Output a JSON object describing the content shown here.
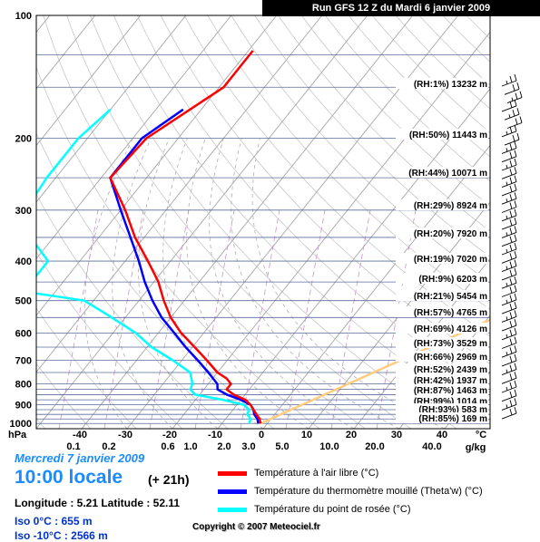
{
  "header": {
    "title": "Run GFS 12 Z du Mardi 6 janvier 2009"
  },
  "info": {
    "date": "Mercredi 7 janvier 2009",
    "time": "10:00 locale",
    "forecast": "(+ 21h)",
    "location": "Longitude : 5.21  Latitude : 52.11",
    "iso0": "Iso 0°C : 655 m",
    "iso10": "Iso -10°C : 2566 m"
  },
  "copyright": "Copyright © 2007 Meteociel.fr",
  "legend": [
    {
      "label": "Température à l'air libre (°C)",
      "color": "#ff0000"
    },
    {
      "label": "Température du thermomètre mouillé (Theta'w) (°C)",
      "color": "#0000ff"
    },
    {
      "label": "Température du point de rosée (°C)",
      "color": "#00ffff"
    }
  ],
  "chart_data": {
    "type": "line",
    "title": "Run GFS 12 Z du Mardi 6 janvier 2009",
    "y_axis": {
      "label": "hPa",
      "ticks": [
        100,
        200,
        300,
        400,
        500,
        600,
        700,
        800,
        900,
        1000
      ],
      "scale": "log",
      "range": [
        1030,
        100
      ]
    },
    "x_axis": {
      "label": "°C",
      "ticks": [
        -40,
        -30,
        -20,
        -10,
        0,
        10,
        20,
        30,
        40
      ],
      "skew": true
    },
    "mixing_ratio_axis": {
      "label": "g/kg",
      "ticks": [
        "0.1",
        "0.2",
        "0.6",
        "1.0",
        "2.0",
        "3.0",
        "5.0",
        "10.0",
        "20.0",
        "40.0"
      ]
    },
    "levels": [
      {
        "label": "(RH:1%) 13232 m"
      },
      {
        "label": "(RH:50%) 11443 m"
      },
      {
        "label": "(RH:44%) 10071 m"
      },
      {
        "label": "(RH:29%) 8924 m"
      },
      {
        "label": "(RH:20%) 7920 m"
      },
      {
        "label": "(RH:19%) 7020 m"
      },
      {
        "label": "(RH:9%) 6203 m"
      },
      {
        "label": "(RH:21%) 5454 m"
      },
      {
        "label": "(RH:57%) 4765 m"
      },
      {
        "label": "(RH:69%) 4126 m"
      },
      {
        "label": "(RH:73%) 3529 m"
      },
      {
        "label": "(RH:66%) 2969 m"
      },
      {
        "label": "(RH:52%) 2439 m"
      },
      {
        "label": "(RH:42%) 1937 m"
      },
      {
        "label": "(RH:87%) 1463 m"
      },
      {
        "label": "(RH:99%) 1014 m"
      },
      {
        "label": "(RH:93%) 583 m"
      },
      {
        "label": "(RH:85%) 169 m"
      }
    ],
    "series": [
      {
        "name": "Température à l'air libre (°C)",
        "color": "#ff0000",
        "points": [
          [
            1000,
            -1.5
          ],
          [
            975,
            -2.5
          ],
          [
            950,
            -4
          ],
          [
            925,
            -5.5
          ],
          [
            900,
            -7
          ],
          [
            875,
            -9
          ],
          [
            850,
            -12.5
          ],
          [
            825,
            -15
          ],
          [
            800,
            -15
          ],
          [
            775,
            -17
          ],
          [
            750,
            -20
          ],
          [
            700,
            -24.5
          ],
          [
            650,
            -29.5
          ],
          [
            600,
            -35
          ],
          [
            550,
            -40
          ],
          [
            500,
            -44.5
          ],
          [
            450,
            -49
          ],
          [
            400,
            -55
          ],
          [
            350,
            -62
          ],
          [
            300,
            -69
          ],
          [
            250,
            -78
          ],
          [
            200,
            -77
          ],
          [
            150,
            -69
          ],
          [
            122,
            -69
          ]
        ]
      },
      {
        "name": "Température du thermomètre mouillé (Theta'w) (°C)",
        "color": "#0000ff",
        "points": [
          [
            1000,
            -2
          ],
          [
            975,
            -3
          ],
          [
            950,
            -4.5
          ],
          [
            925,
            -5.5
          ],
          [
            900,
            -7
          ],
          [
            875,
            -10
          ],
          [
            850,
            -14
          ],
          [
            825,
            -17
          ],
          [
            800,
            -18
          ],
          [
            750,
            -22
          ],
          [
            700,
            -26.5
          ],
          [
            650,
            -31.5
          ],
          [
            600,
            -36.5
          ],
          [
            550,
            -42
          ],
          [
            500,
            -47
          ],
          [
            450,
            -52
          ],
          [
            400,
            -57
          ],
          [
            350,
            -63
          ],
          [
            300,
            -70
          ],
          [
            250,
            -78
          ],
          [
            200,
            -78
          ],
          [
            170,
            -74
          ]
        ]
      },
      {
        "name": "Température du point de rosée (°C)",
        "color": "#00ffff",
        "points": [
          [
            1000,
            -4
          ],
          [
            975,
            -4.5
          ],
          [
            950,
            -6
          ],
          [
            925,
            -6.5
          ],
          [
            900,
            -8.5
          ],
          [
            875,
            -14
          ],
          [
            850,
            -21
          ],
          [
            825,
            -23
          ],
          [
            800,
            -23.5
          ],
          [
            750,
            -26
          ],
          [
            700,
            -32
          ],
          [
            650,
            -39
          ],
          [
            600,
            -45
          ],
          [
            550,
            -53
          ],
          [
            500,
            -62
          ],
          [
            475,
            -77
          ],
          [
            440,
            -77
          ],
          [
            400,
            -77
          ],
          [
            350,
            -85
          ],
          [
            300,
            -91
          ],
          [
            250,
            -92
          ],
          [
            200,
            -92
          ],
          [
            170,
            -90
          ]
        ]
      }
    ],
    "parcel": {
      "color": "#ffcc80",
      "points": [
        [
          1000,
          -1.5
        ],
        [
          300,
          65
        ]
      ]
    },
    "wind_barbs": {
      "side": "right",
      "count": 40
    }
  }
}
